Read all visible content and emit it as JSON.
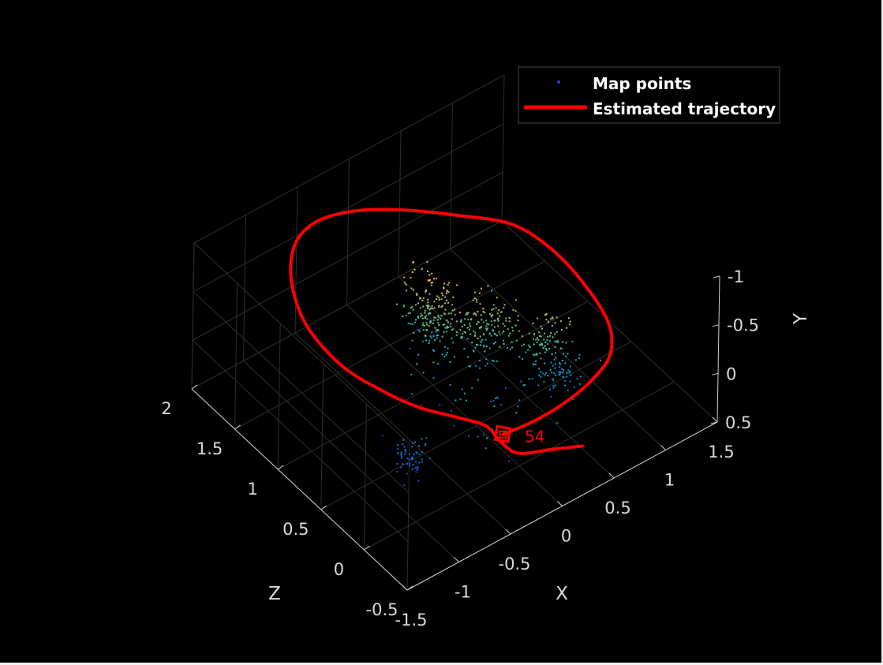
{
  "chart_data": {
    "type": "scatter",
    "view": "3d",
    "xlabel": "X",
    "ylabel": "Y",
    "zlabel": "Z",
    "xlim": [
      -1.5,
      1.5
    ],
    "ylim": [
      -1,
      0.5
    ],
    "zlim": [
      -0.5,
      2
    ],
    "y_direction": "reverse",
    "grid": true,
    "legend_position": "top-right",
    "x_ticks": [
      "-1.5",
      "-1",
      "-0.5",
      "0",
      "0.5",
      "1",
      "1.5"
    ],
    "y_ticks": [
      "-1",
      "-0.5",
      "0",
      "0.5"
    ],
    "z_ticks": [
      "-0.5",
      "0",
      "0.5",
      "1",
      "1.5",
      "2"
    ],
    "series": [
      {
        "name": "Map points",
        "kind": "scatter",
        "marker_color": "#3b3bd6",
        "colormap": "parula-by-height",
        "clusters": [
          {
            "center": [
              -0.1,
              -0.4,
              0.9
            ],
            "spread": [
              0.09,
              0.18,
              0.12
            ],
            "count": 200
          },
          {
            "center": [
              0.15,
              -0.35,
              0.6
            ],
            "spread": [
              0.12,
              0.14,
              0.1
            ],
            "count": 150
          },
          {
            "center": [
              0.45,
              -0.35,
              0.25
            ],
            "spread": [
              0.1,
              0.14,
              0.08
            ],
            "count": 90
          },
          {
            "center": [
              0.55,
              0.0,
              0.2
            ],
            "spread": [
              0.1,
              0.08,
              0.08
            ],
            "count": 60
          },
          {
            "center": [
              -0.75,
              0.25,
              0.35
            ],
            "spread": [
              0.07,
              0.08,
              0.06
            ],
            "count": 60
          },
          {
            "center": [
              0.05,
              0.0,
              0.45
            ],
            "spread": [
              0.3,
              0.25,
              0.3
            ],
            "count": 70
          }
        ]
      },
      {
        "name": "Estimated trajectory",
        "kind": "line",
        "color": "#ff0000",
        "points": [
          [
            -0.12,
            0.15,
            0.05
          ],
          [
            0.15,
            0.12,
            0.0
          ],
          [
            0.45,
            0.1,
            0.0
          ],
          [
            0.75,
            0.08,
            0.05
          ],
          [
            1.0,
            0.05,
            0.15
          ],
          [
            1.1,
            -0.1,
            0.3
          ],
          [
            1.08,
            -0.3,
            0.6
          ],
          [
            1.0,
            -0.45,
            0.9
          ],
          [
            0.85,
            -0.55,
            1.15
          ],
          [
            0.55,
            -0.6,
            1.4
          ],
          [
            0.25,
            -0.62,
            1.65
          ],
          [
            -0.05,
            -0.62,
            1.85
          ],
          [
            -0.35,
            -0.6,
            1.95
          ],
          [
            -0.6,
            -0.55,
            1.9
          ],
          [
            -0.8,
            -0.45,
            1.7
          ],
          [
            -0.9,
            -0.3,
            1.4
          ],
          [
            -0.85,
            -0.15,
            1.05
          ],
          [
            -0.7,
            -0.05,
            0.75
          ],
          [
            -0.55,
            0.0,
            0.5
          ],
          [
            -0.35,
            0.05,
            0.3
          ],
          [
            -0.2,
            0.1,
            0.15
          ],
          [
            -0.15,
            0.2,
            0.05
          ],
          [
            -0.05,
            0.3,
            -0.05
          ],
          [
            0.2,
            0.32,
            -0.15
          ],
          [
            0.4,
            0.32,
            -0.25
          ]
        ]
      }
    ],
    "annotations": [
      {
        "kind": "camera-marker",
        "color": "#ff0000",
        "position": [
          -0.12,
          0.15,
          0.05
        ]
      },
      {
        "kind": "text",
        "text": "54",
        "color": "#ff0000",
        "position": [
          0.05,
          0.22,
          0.0
        ]
      }
    ]
  }
}
